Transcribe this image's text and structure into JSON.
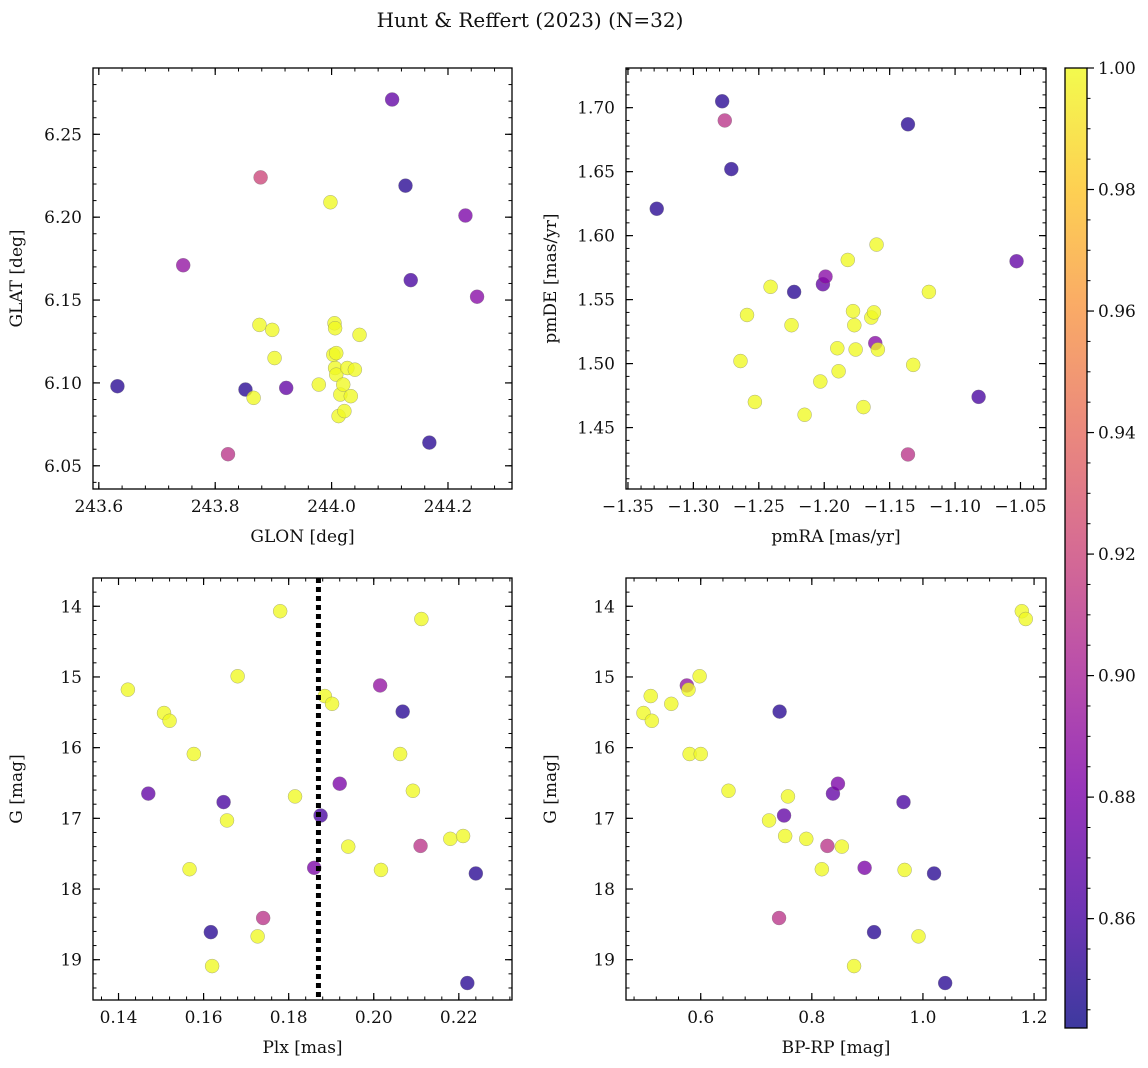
{
  "figure": {
    "title": "Hunt & Reffert (2023) (N=32)"
  },
  "colorbar": {
    "range": [
      0.842,
      1.0
    ],
    "ticks": [
      "1.00",
      "0.98",
      "0.96",
      "0.94",
      "0.92",
      "0.90",
      "0.88",
      "0.86"
    ],
    "tick_values": [
      1.0,
      0.98,
      0.96,
      0.94,
      0.92,
      0.9,
      0.88,
      0.86
    ],
    "colormap": "plasma"
  },
  "chart_data": [
    {
      "type": "scatter",
      "xlabel": "GLON [deg]",
      "ylabel": "GLAT [deg]",
      "xlim": [
        243.59,
        244.31
      ],
      "ylim": [
        6.036,
        6.29
      ],
      "xticks": [
        243.6,
        243.8,
        244.0,
        244.2
      ],
      "xtick_labels": [
        "243.6",
        "243.8",
        "244.0",
        "244.2"
      ],
      "yticks": [
        6.05,
        6.1,
        6.15,
        6.2,
        6.25
      ],
      "ytick_labels": [
        "6.05",
        "6.10",
        "6.15",
        "6.20",
        "6.25"
      ],
      "y_inverted": false,
      "points": [
        {
          "x": 243.632,
          "y": 6.098,
          "c": 0.85
        },
        {
          "x": 243.745,
          "y": 6.171,
          "c": 0.89
        },
        {
          "x": 243.822,
          "y": 6.057,
          "c": 0.91
        },
        {
          "x": 243.852,
          "y": 6.096,
          "c": 0.85
        },
        {
          "x": 243.866,
          "y": 6.091,
          "c": 1.0
        },
        {
          "x": 243.878,
          "y": 6.224,
          "c": 0.92
        },
        {
          "x": 243.876,
          "y": 6.135,
          "c": 1.0
        },
        {
          "x": 243.898,
          "y": 6.132,
          "c": 1.0
        },
        {
          "x": 243.902,
          "y": 6.115,
          "c": 1.0
        },
        {
          "x": 243.922,
          "y": 6.097,
          "c": 0.87
        },
        {
          "x": 243.978,
          "y": 6.099,
          "c": 1.0
        },
        {
          "x": 243.998,
          "y": 6.209,
          "c": 1.0
        },
        {
          "x": 244.003,
          "y": 6.117,
          "c": 1.0
        },
        {
          "x": 244.005,
          "y": 6.136,
          "c": 1.0
        },
        {
          "x": 244.006,
          "y": 6.133,
          "c": 1.0
        },
        {
          "x": 244.008,
          "y": 6.118,
          "c": 1.0
        },
        {
          "x": 244.006,
          "y": 6.109,
          "c": 1.0
        },
        {
          "x": 244.008,
          "y": 6.105,
          "c": 1.0
        },
        {
          "x": 244.012,
          "y": 6.08,
          "c": 1.0
        },
        {
          "x": 244.015,
          "y": 6.093,
          "c": 1.0
        },
        {
          "x": 244.02,
          "y": 6.099,
          "c": 1.0
        },
        {
          "x": 244.022,
          "y": 6.083,
          "c": 1.0
        },
        {
          "x": 244.027,
          "y": 6.109,
          "c": 1.0
        },
        {
          "x": 244.033,
          "y": 6.092,
          "c": 1.0
        },
        {
          "x": 244.04,
          "y": 6.108,
          "c": 1.0
        },
        {
          "x": 244.048,
          "y": 6.129,
          "c": 1.0
        },
        {
          "x": 244.104,
          "y": 6.271,
          "c": 0.87
        },
        {
          "x": 244.127,
          "y": 6.219,
          "c": 0.85
        },
        {
          "x": 244.136,
          "y": 6.162,
          "c": 0.86
        },
        {
          "x": 244.168,
          "y": 6.064,
          "c": 0.85
        },
        {
          "x": 244.23,
          "y": 6.201,
          "c": 0.88
        },
        {
          "x": 244.25,
          "y": 6.152,
          "c": 0.885
        }
      ]
    },
    {
      "type": "scatter",
      "xlabel": "pmRA [mas/yr]",
      "ylabel": "pmDE [mas/yr]",
      "xlim": [
        -1.3515,
        -1.0305
      ],
      "ylim": [
        1.402,
        1.731
      ],
      "xticks": [
        -1.35,
        -1.3,
        -1.25,
        -1.2,
        -1.15,
        -1.1,
        -1.05
      ],
      "xtick_labels": [
        "−1.35",
        "−1.30",
        "−1.25",
        "−1.20",
        "−1.15",
        "−1.10",
        "−1.05"
      ],
      "yticks": [
        1.45,
        1.5,
        1.55,
        1.6,
        1.65,
        1.7
      ],
      "ytick_labels": [
        "1.45",
        "1.50",
        "1.55",
        "1.60",
        "1.65",
        "1.70"
      ],
      "y_inverted": false,
      "points": [
        {
          "x": -1.328,
          "y": 1.621,
          "c": 0.85
        },
        {
          "x": -1.278,
          "y": 1.705,
          "c": 0.85
        },
        {
          "x": -1.276,
          "y": 1.69,
          "c": 0.91
        },
        {
          "x": -1.271,
          "y": 1.652,
          "c": 0.85
        },
        {
          "x": -1.264,
          "y": 1.502,
          "c": 1.0
        },
        {
          "x": -1.259,
          "y": 1.538,
          "c": 1.0
        },
        {
          "x": -1.253,
          "y": 1.47,
          "c": 1.0
        },
        {
          "x": -1.241,
          "y": 1.56,
          "c": 1.0
        },
        {
          "x": -1.225,
          "y": 1.53,
          "c": 1.0
        },
        {
          "x": -1.223,
          "y": 1.556,
          "c": 0.85
        },
        {
          "x": -1.215,
          "y": 1.46,
          "c": 1.0
        },
        {
          "x": -1.203,
          "y": 1.486,
          "c": 1.0
        },
        {
          "x": -1.201,
          "y": 1.562,
          "c": 0.87
        },
        {
          "x": -1.199,
          "y": 1.568,
          "c": 0.885
        },
        {
          "x": -1.19,
          "y": 1.512,
          "c": 1.0
        },
        {
          "x": -1.189,
          "y": 1.494,
          "c": 1.0
        },
        {
          "x": -1.182,
          "y": 1.581,
          "c": 1.0
        },
        {
          "x": -1.178,
          "y": 1.541,
          "c": 1.0
        },
        {
          "x": -1.177,
          "y": 1.53,
          "c": 1.0
        },
        {
          "x": -1.176,
          "y": 1.511,
          "c": 1.0
        },
        {
          "x": -1.17,
          "y": 1.466,
          "c": 1.0
        },
        {
          "x": -1.164,
          "y": 1.536,
          "c": 1.0
        },
        {
          "x": -1.162,
          "y": 1.54,
          "c": 1.0
        },
        {
          "x": -1.161,
          "y": 1.516,
          "c": 0.885
        },
        {
          "x": -1.16,
          "y": 1.593,
          "c": 1.0
        },
        {
          "x": -1.159,
          "y": 1.511,
          "c": 1.0
        },
        {
          "x": -1.136,
          "y": 1.687,
          "c": 0.85
        },
        {
          "x": -1.136,
          "y": 1.429,
          "c": 0.91
        },
        {
          "x": -1.132,
          "y": 1.499,
          "c": 1.0
        },
        {
          "x": -1.12,
          "y": 1.556,
          "c": 1.0
        },
        {
          "x": -1.082,
          "y": 1.474,
          "c": 0.86
        },
        {
          "x": -1.053,
          "y": 1.58,
          "c": 0.87
        }
      ]
    },
    {
      "type": "scatter",
      "xlabel": "Plx [mas]",
      "ylabel": "G [mag]",
      "xlim": [
        0.134,
        0.2325
      ],
      "ylim": [
        19.57,
        13.6
      ],
      "xticks": [
        0.14,
        0.16,
        0.18,
        0.2,
        0.22
      ],
      "xtick_labels": [
        "0.14",
        "0.16",
        "0.18",
        "0.20",
        "0.22"
      ],
      "yticks": [
        14,
        15,
        16,
        17,
        18,
        19
      ],
      "ytick_labels": [
        "14",
        "15",
        "16",
        "17",
        "18",
        "19"
      ],
      "y_inverted": true,
      "vline": {
        "x": 0.187,
        "style": "dotted"
      },
      "points": [
        {
          "x": 0.1422,
          "y": 15.18,
          "c": 1.0
        },
        {
          "x": 0.147,
          "y": 16.65,
          "c": 0.87
        },
        {
          "x": 0.1507,
          "y": 15.51,
          "c": 1.0
        },
        {
          "x": 0.152,
          "y": 15.62,
          "c": 1.0
        },
        {
          "x": 0.1567,
          "y": 17.72,
          "c": 1.0
        },
        {
          "x": 0.1577,
          "y": 16.09,
          "c": 1.0
        },
        {
          "x": 0.1617,
          "y": 18.61,
          "c": 0.85
        },
        {
          "x": 0.162,
          "y": 19.09,
          "c": 1.0
        },
        {
          "x": 0.1647,
          "y": 16.77,
          "c": 0.86
        },
        {
          "x": 0.1655,
          "y": 17.03,
          "c": 1.0
        },
        {
          "x": 0.168,
          "y": 14.99,
          "c": 1.0
        },
        {
          "x": 0.1727,
          "y": 18.67,
          "c": 1.0
        },
        {
          "x": 0.174,
          "y": 18.41,
          "c": 0.91
        },
        {
          "x": 0.178,
          "y": 14.07,
          "c": 1.0
        },
        {
          "x": 0.1815,
          "y": 16.69,
          "c": 1.0
        },
        {
          "x": 0.186,
          "y": 17.7,
          "c": 0.88
        },
        {
          "x": 0.1875,
          "y": 16.96,
          "c": 0.86
        },
        {
          "x": 0.1885,
          "y": 15.27,
          "c": 1.0
        },
        {
          "x": 0.1902,
          "y": 15.38,
          "c": 1.0
        },
        {
          "x": 0.192,
          "y": 16.51,
          "c": 0.88
        },
        {
          "x": 0.194,
          "y": 17.4,
          "c": 1.0
        },
        {
          "x": 0.2015,
          "y": 15.12,
          "c": 0.89
        },
        {
          "x": 0.2017,
          "y": 17.73,
          "c": 1.0
        },
        {
          "x": 0.2062,
          "y": 16.09,
          "c": 1.0
        },
        {
          "x": 0.2068,
          "y": 15.49,
          "c": 0.85
        },
        {
          "x": 0.2092,
          "y": 16.61,
          "c": 1.0
        },
        {
          "x": 0.211,
          "y": 17.39,
          "c": 0.91
        },
        {
          "x": 0.2112,
          "y": 14.18,
          "c": 1.0
        },
        {
          "x": 0.218,
          "y": 17.29,
          "c": 1.0
        },
        {
          "x": 0.221,
          "y": 17.25,
          "c": 1.0
        },
        {
          "x": 0.222,
          "y": 19.33,
          "c": 0.85
        },
        {
          "x": 0.224,
          "y": 17.78,
          "c": 0.85
        }
      ]
    },
    {
      "type": "scatter",
      "xlabel": "BP-RP [mag]",
      "ylabel": "G [mag]",
      "xlim": [
        0.4655,
        1.2215
      ],
      "ylim": [
        19.57,
        13.6
      ],
      "xticks": [
        0.6,
        0.8,
        1.0,
        1.2
      ],
      "xtick_labels": [
        "0.6",
        "0.8",
        "1.0",
        "1.2"
      ],
      "yticks": [
        14,
        15,
        16,
        17,
        18,
        19
      ],
      "ytick_labels": [
        "14",
        "15",
        "16",
        "17",
        "18",
        "19"
      ],
      "y_inverted": true,
      "points": [
        {
          "x": 0.497,
          "y": 15.51,
          "c": 1.0
        },
        {
          "x": 0.51,
          "y": 15.27,
          "c": 1.0
        },
        {
          "x": 0.512,
          "y": 15.62,
          "c": 1.0
        },
        {
          "x": 0.547,
          "y": 15.38,
          "c": 1.0
        },
        {
          "x": 0.575,
          "y": 15.12,
          "c": 0.89
        },
        {
          "x": 0.578,
          "y": 15.18,
          "c": 1.0
        },
        {
          "x": 0.58,
          "y": 16.09,
          "c": 1.0
        },
        {
          "x": 0.598,
          "y": 14.99,
          "c": 1.0
        },
        {
          "x": 0.6,
          "y": 16.09,
          "c": 1.0
        },
        {
          "x": 0.65,
          "y": 16.61,
          "c": 1.0
        },
        {
          "x": 0.723,
          "y": 17.03,
          "c": 1.0
        },
        {
          "x": 0.741,
          "y": 18.41,
          "c": 0.91
        },
        {
          "x": 0.742,
          "y": 15.49,
          "c": 0.85
        },
        {
          "x": 0.75,
          "y": 16.96,
          "c": 0.87
        },
        {
          "x": 0.752,
          "y": 17.25,
          "c": 1.0
        },
        {
          "x": 0.757,
          "y": 16.69,
          "c": 1.0
        },
        {
          "x": 0.79,
          "y": 17.29,
          "c": 1.0
        },
        {
          "x": 0.818,
          "y": 17.72,
          "c": 1.0
        },
        {
          "x": 0.828,
          "y": 17.39,
          "c": 0.91
        },
        {
          "x": 0.838,
          "y": 16.65,
          "c": 0.87
        },
        {
          "x": 0.847,
          "y": 16.51,
          "c": 0.88
        },
        {
          "x": 0.854,
          "y": 17.4,
          "c": 1.0
        },
        {
          "x": 0.876,
          "y": 19.09,
          "c": 1.0
        },
        {
          "x": 0.895,
          "y": 17.7,
          "c": 0.88
        },
        {
          "x": 0.912,
          "y": 18.61,
          "c": 0.85
        },
        {
          "x": 0.965,
          "y": 16.77,
          "c": 0.86
        },
        {
          "x": 0.967,
          "y": 17.73,
          "c": 1.0
        },
        {
          "x": 0.992,
          "y": 18.67,
          "c": 1.0
        },
        {
          "x": 1.02,
          "y": 17.78,
          "c": 0.85
        },
        {
          "x": 1.04,
          "y": 19.33,
          "c": 0.85
        },
        {
          "x": 1.178,
          "y": 14.07,
          "c": 1.0
        },
        {
          "x": 1.185,
          "y": 14.18,
          "c": 1.0
        }
      ]
    }
  ]
}
